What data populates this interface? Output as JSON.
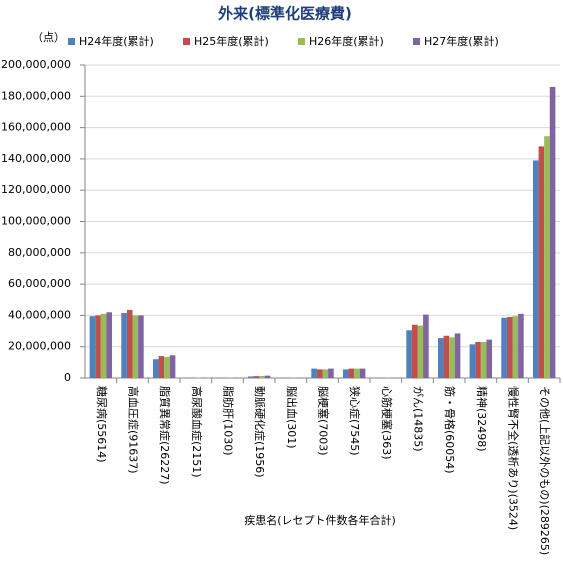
{
  "chart_data": {
    "type": "bar",
    "title": "外来(標準化医療費)",
    "y_label": "（点）",
    "x_label": "疾患名(レセプト件数各年合計)",
    "categories": [
      "糖尿病(55614)",
      "高血圧症(91637)",
      "脂質異常症(26227)",
      "高尿酸血症(2151)",
      "脂肪肝(1030)",
      "動脈硬化症(1956)",
      "脳出血(301)",
      "脳梗塞(7003)",
      "狭心症(7545)",
      "心筋梗塞(363)",
      "がん(14835)",
      "筋・骨格(60054)",
      "精神(32498)",
      "慢性腎不全(透析あり)(3524)",
      "その他(上記以外のもの)(289265)"
    ],
    "series": [
      {
        "name": "H24年度(累計)",
        "color": "#4f81bd",
        "values": [
          39500000,
          41500000,
          12000000,
          300000,
          200000,
          1000000,
          200000,
          6000000,
          5500000,
          200000,
          30500000,
          25500000,
          21500000,
          38500000,
          139000000
        ]
      },
      {
        "name": "H25年度(累計)",
        "color": "#c0504d",
        "values": [
          40000000,
          43500000,
          14000000,
          300000,
          200000,
          1200000,
          200000,
          5500000,
          6000000,
          200000,
          34000000,
          27000000,
          23000000,
          39000000,
          148000000
        ]
      },
      {
        "name": "H26年度(累計)",
        "color": "#9bbb59",
        "values": [
          41000000,
          40000000,
          13500000,
          300000,
          200000,
          1300000,
          200000,
          5500000,
          6000000,
          200000,
          33500000,
          26000000,
          23000000,
          39500000,
          154500000
        ]
      },
      {
        "name": "H27年度(累計)",
        "color": "#8064a2",
        "values": [
          42000000,
          40000000,
          14500000,
          300000,
          300000,
          1500000,
          300000,
          6000000,
          6000000,
          200000,
          40500000,
          28500000,
          24500000,
          41000000,
          186000000
        ]
      }
    ],
    "ylim": [
      0,
      200000000
    ],
    "yticks": [
      0,
      {
        "value": 20000000,
        "label": "20,000,000"
      },
      {
        "value": 40000000,
        "label": "40,000,000"
      },
      {
        "value": 60000000,
        "label": "60,000,000"
      },
      {
        "value": 80000000,
        "label": "80,000,000"
      },
      {
        "value": 100000000,
        "label": "100,000,000"
      },
      {
        "value": 120000000,
        "label": "120,000,000"
      },
      {
        "value": 140000000,
        "label": "140,000,000"
      },
      {
        "value": 160000000,
        "label": "160,000,000"
      },
      {
        "value": 180000000,
        "label": "180,000,000"
      },
      {
        "value": 200000000,
        "label": "200,000,000"
      }
    ],
    "grid": true
  }
}
